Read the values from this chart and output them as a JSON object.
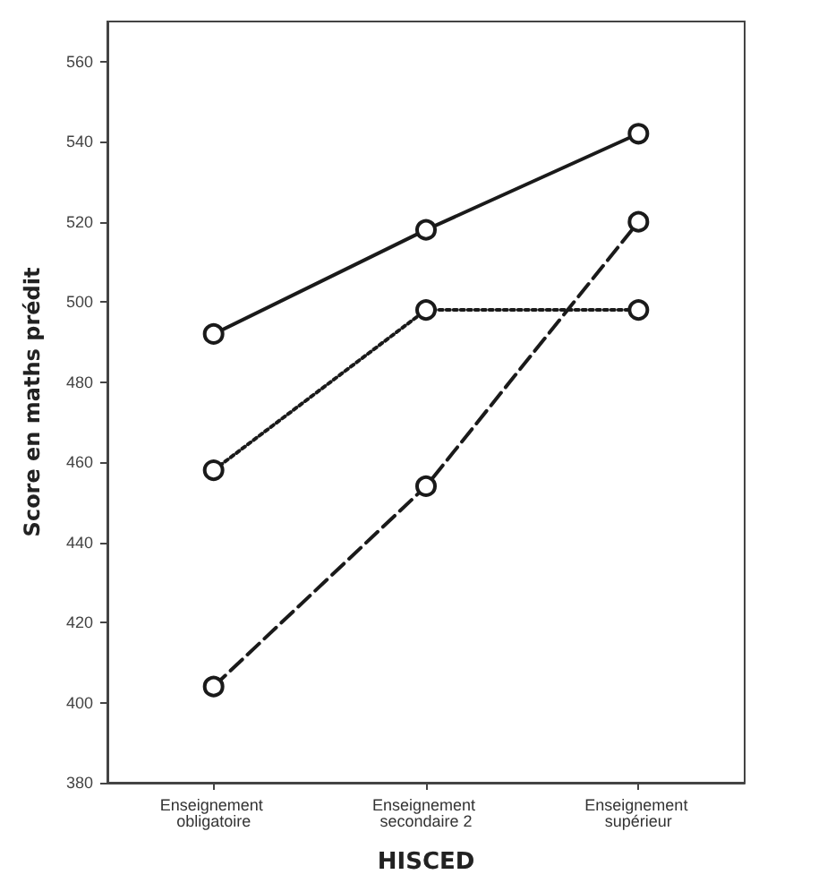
{
  "chart_data": {
    "type": "line",
    "xlabel": "HISCED",
    "ylabel": "Score en maths prédit",
    "categories": [
      "Enseignement obligatoire",
      "Enseignement secondaire 2",
      "Enseignement supérieur"
    ],
    "series": [
      {
        "color": "#1a1a1a",
        "values": [
          492,
          518,
          542
        ],
        "line_style": "solid"
      },
      {
        "color": "#1a1a1a",
        "values": [
          458,
          498,
          498
        ],
        "line_style": "dotted"
      },
      {
        "color": "#1a1a1a",
        "values": [
          404,
          454,
          520
        ],
        "line_style": "dashed"
      }
    ],
    "ylim": [
      380,
      570
    ],
    "yticks": [
      380,
      400,
      420,
      440,
      460,
      480,
      500,
      520,
      540,
      560
    ],
    "grid": false,
    "marker": "circle"
  }
}
